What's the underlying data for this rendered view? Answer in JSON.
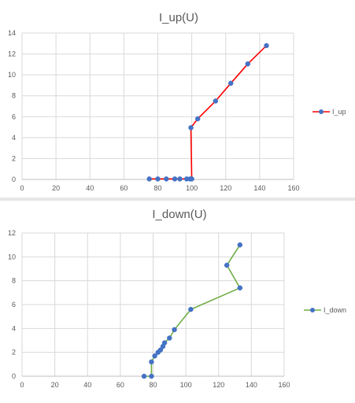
{
  "chart_data": [
    {
      "type": "scatter",
      "title": "I_up(U)",
      "xlabel": "",
      "ylabel": "",
      "xlim": [
        0,
        160
      ],
      "ylim": [
        0,
        14
      ],
      "xticks": [
        0,
        20,
        40,
        60,
        80,
        100,
        120,
        140,
        160
      ],
      "yticks": [
        0,
        2,
        4,
        6,
        8,
        10,
        12,
        14
      ],
      "grid": true,
      "legend": "right",
      "series": [
        {
          "name": "I_up",
          "line_color": "#ff0000",
          "marker_color": "#4472c4",
          "x": [
            75,
            80,
            85,
            90,
            93,
            97,
            99,
            100,
            99.5,
            103.5,
            114,
            123,
            133,
            144
          ],
          "y": [
            0.05,
            0.05,
            0.05,
            0.05,
            0.05,
            0.05,
            0.05,
            0.05,
            4.95,
            5.8,
            7.5,
            9.2,
            11.05,
            12.8
          ]
        }
      ]
    },
    {
      "type": "scatter",
      "title": "I_down(U)",
      "xlabel": "",
      "ylabel": "",
      "xlim": [
        0,
        160
      ],
      "ylim": [
        0,
        12
      ],
      "xticks": [
        0,
        20,
        40,
        60,
        80,
        100,
        120,
        140,
        160
      ],
      "yticks": [
        0,
        2,
        4,
        6,
        8,
        10,
        12
      ],
      "grid": true,
      "legend": "right",
      "series": [
        {
          "name": "I_down",
          "line_color": "#70ad47",
          "marker_color": "#4472c4",
          "x": [
            133,
            125,
            133,
            103,
            93,
            90,
            87,
            86,
            84.5,
            83,
            81,
            79,
            79,
            74.5
          ],
          "y": [
            11,
            9.3,
            7.4,
            5.6,
            3.9,
            3.2,
            2.8,
            2.5,
            2.2,
            2.0,
            1.7,
            1.2,
            0,
            0
          ]
        }
      ]
    }
  ]
}
